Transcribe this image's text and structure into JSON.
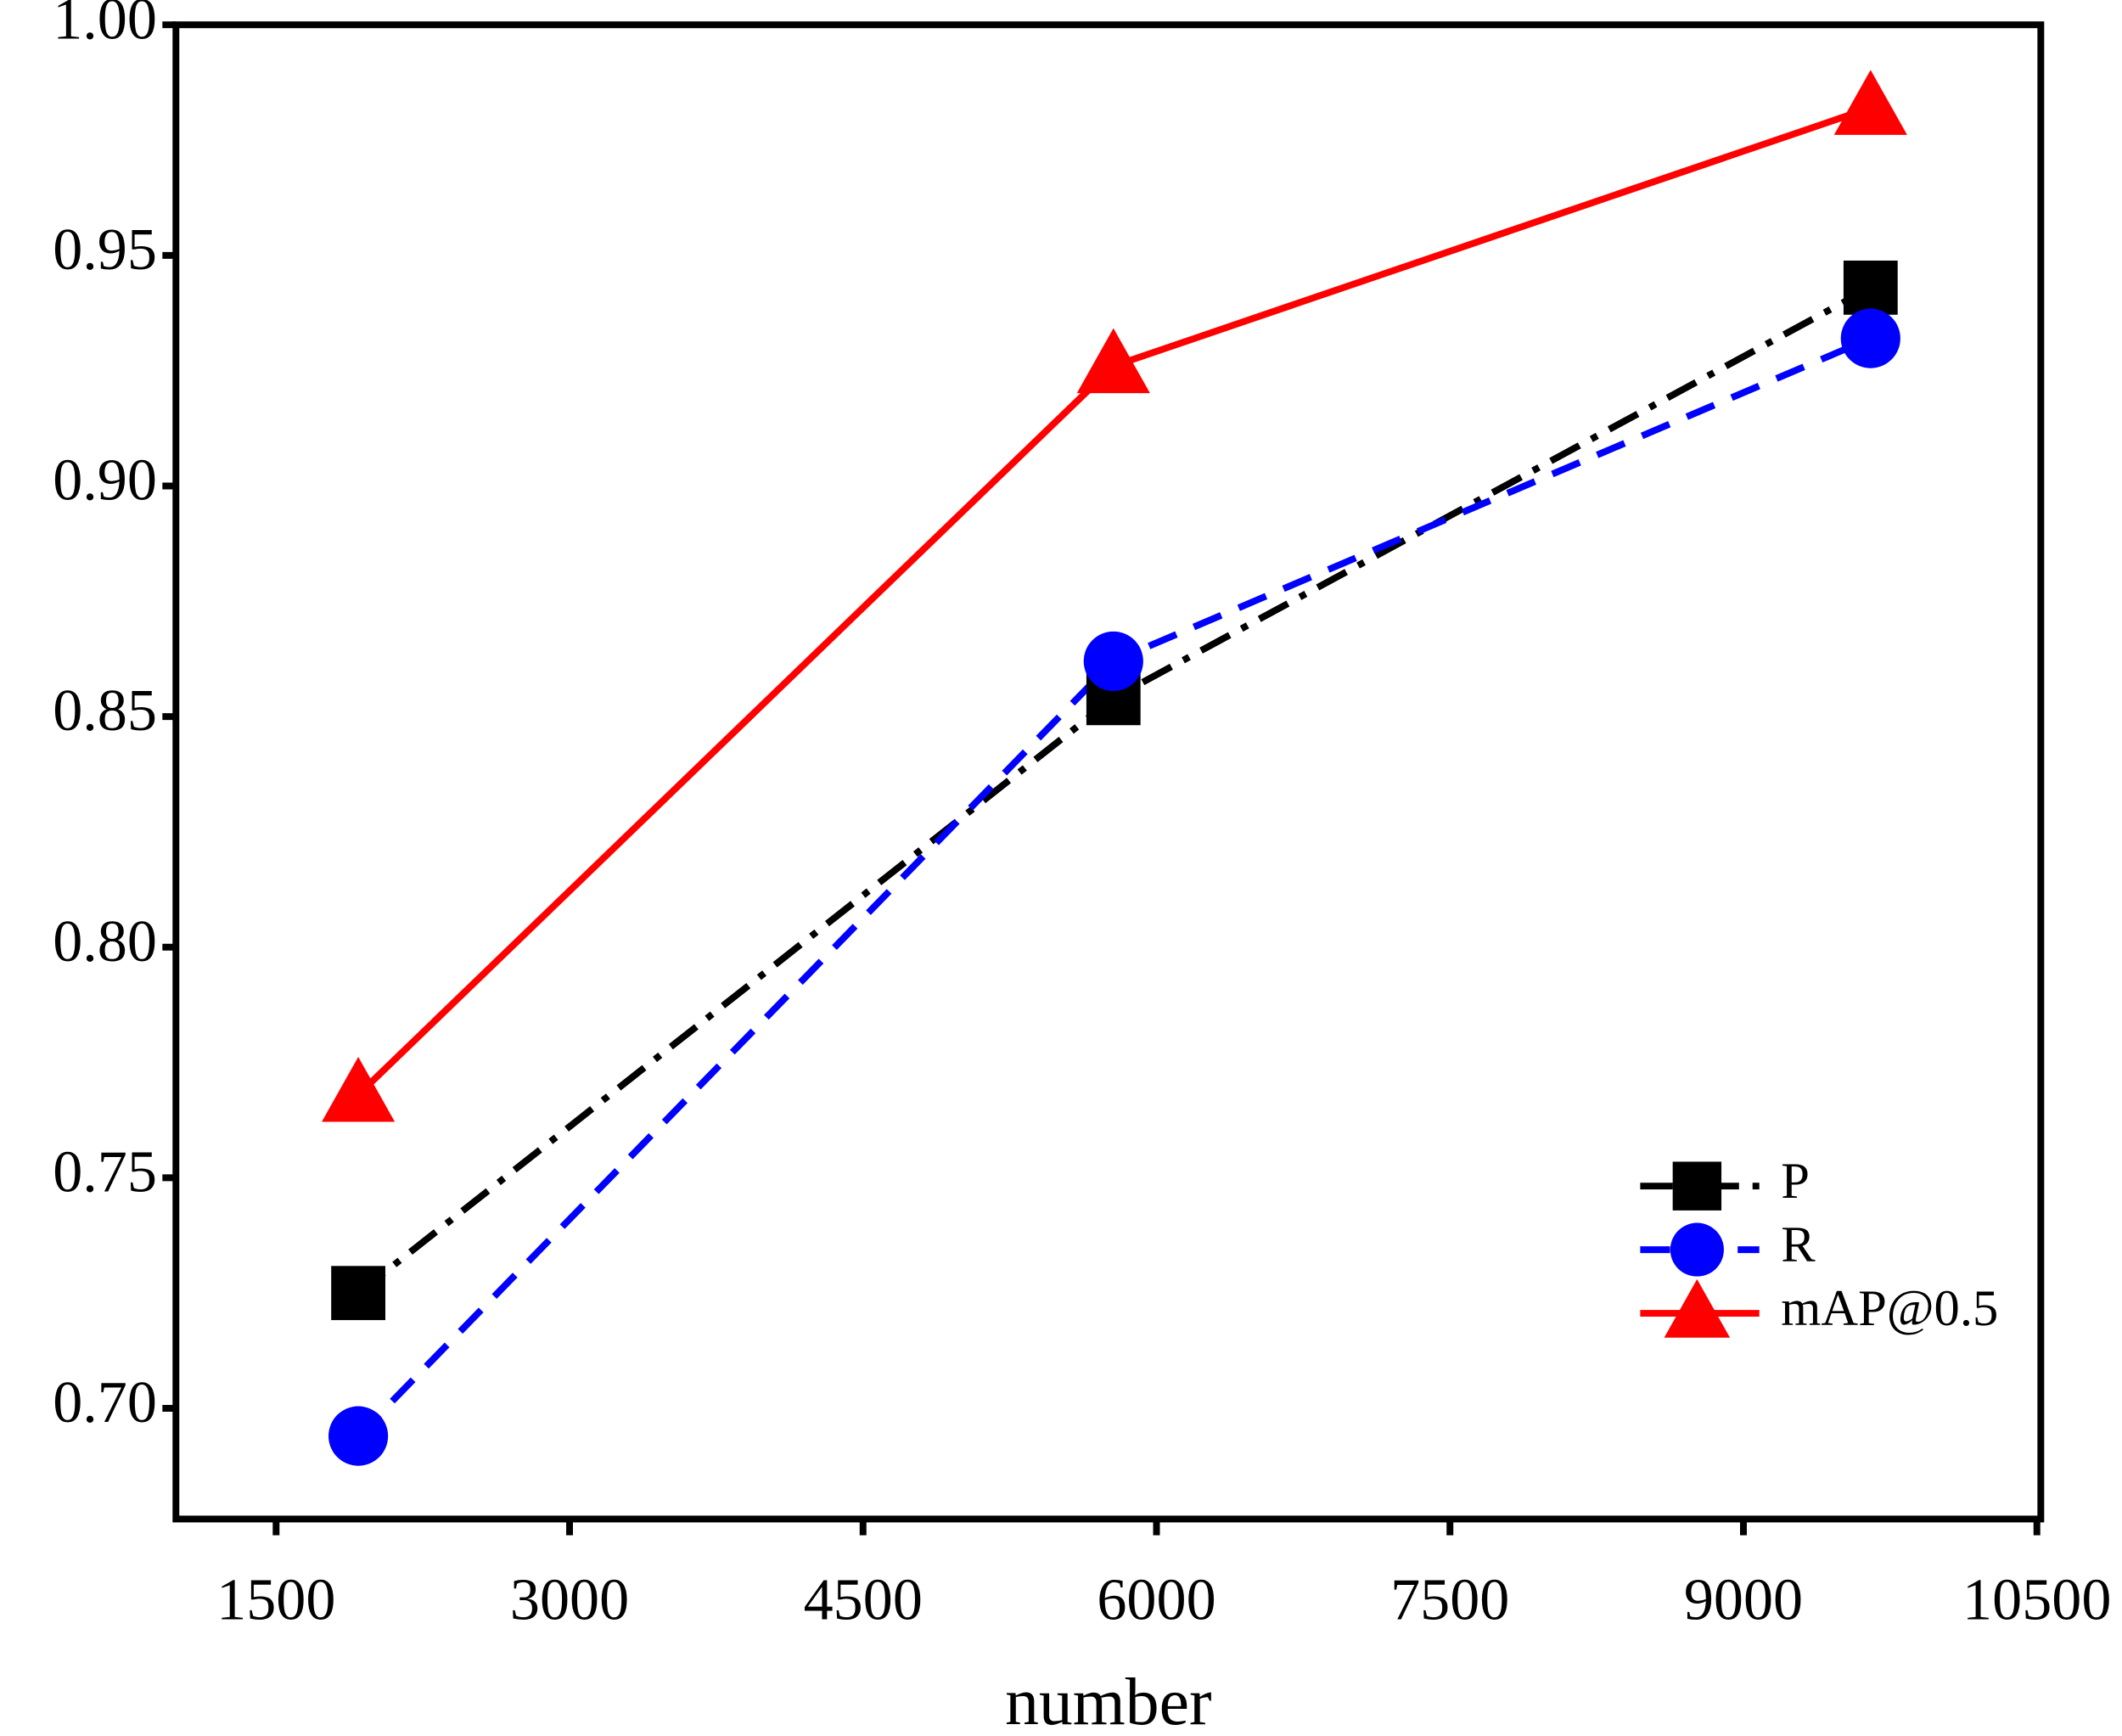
{
  "chart_data": {
    "type": "line",
    "x_label": "number",
    "x": [
      1920,
      5780,
      9650
    ],
    "series": [
      {
        "name": "P",
        "color": "#000000",
        "linestyle": "dashdot",
        "marker": "square",
        "values": [
          0.725,
          0.854,
          0.943
        ]
      },
      {
        "name": "R",
        "color": "#0000ff",
        "linestyle": "dashed",
        "marker": "circle",
        "values": [
          0.694,
          0.862,
          0.932
        ]
      },
      {
        "name": "mAP@0.5",
        "color": "#ff0000",
        "linestyle": "solid",
        "marker": "triangle",
        "values": [
          0.768,
          0.926,
          0.982
        ]
      }
    ],
    "xlim": [
      988,
      10520
    ],
    "ylim": [
      0.676,
      1.0
    ],
    "xticks": [
      1500,
      3000,
      4500,
      6000,
      7500,
      9000,
      10500
    ],
    "yticks": [
      {
        "value": 0.7,
        "label": "0.70"
      },
      {
        "value": 0.75,
        "label": "0.75"
      },
      {
        "value": 0.8,
        "label": "0.80"
      },
      {
        "value": 0.85,
        "label": "0.85"
      },
      {
        "value": 0.9,
        "label": "0.90"
      },
      {
        "value": 0.95,
        "label": "0.95"
      },
      {
        "value": 1.0,
        "label": "1.00"
      }
    ],
    "legend": "lower right"
  }
}
